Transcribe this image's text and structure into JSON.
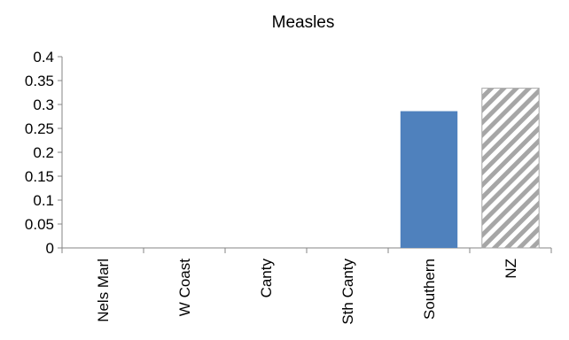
{
  "chart_data": {
    "type": "bar",
    "title": "Measles",
    "categories": [
      "Nels Marl",
      "W Coast",
      "Canty",
      "Sth Canty",
      "Southern",
      "NZ"
    ],
    "values": [
      0,
      0,
      0,
      0,
      0.286,
      0.334
    ],
    "ylim": [
      0,
      0.4
    ],
    "yticks": [
      "0",
      "0.05",
      "0.1",
      "0.15",
      "0.2",
      "0.25",
      "0.3",
      "0.35",
      "0.4"
    ],
    "xlabel": "",
    "ylabel": "",
    "grid": false,
    "legend": "none",
    "bar_styles": [
      "solid",
      "solid",
      "solid",
      "solid",
      "solid",
      "hatched"
    ],
    "colors": {
      "bar": "#4F81BD",
      "hatch": "#A6A6A6",
      "axis": "#868686"
    }
  }
}
